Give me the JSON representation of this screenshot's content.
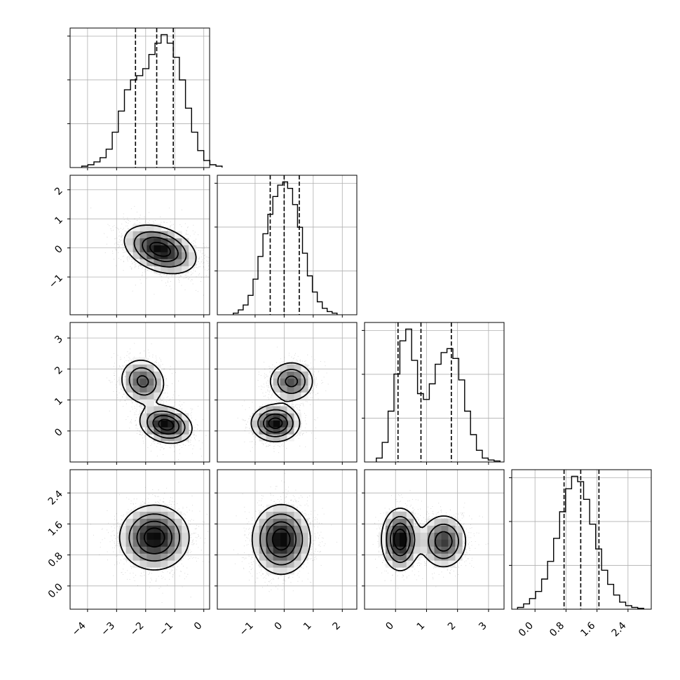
{
  "chart_data": {
    "type": "corner",
    "description_free": true,
    "grid": true,
    "parameters": [
      {
        "range": [
          -4.6,
          0.2
        ],
        "ticks": [
          -4,
          -3,
          -2,
          -1,
          0
        ],
        "tick_labels": [
          "−4",
          "−3",
          "−2",
          "−1",
          "0"
        ],
        "quantiles": [
          -2.35,
          -1.62,
          -1.05
        ],
        "hist": {
          "edges_start": -4.2,
          "bin_width": 0.21,
          "counts": [
            1,
            2,
            4,
            7,
            13,
            25,
            40,
            55,
            62,
            65,
            70,
            80,
            88,
            94,
            88,
            78,
            62,
            42,
            25,
            12,
            5,
            2,
            1
          ]
        }
      },
      {
        "range": [
          -2.3,
          2.5
        ],
        "ticks": [
          -1,
          0,
          1,
          2
        ],
        "tick_labels": [
          "−1",
          "0",
          "1",
          "2"
        ],
        "quantiles": [
          -0.48,
          0.0,
          0.52
        ],
        "hist": {
          "edges_start": -1.75,
          "bin_width": 0.17,
          "counts": [
            1,
            3,
            6,
            12,
            22,
            36,
            50,
            62,
            73,
            80,
            82,
            78,
            68,
            54,
            38,
            24,
            14,
            8,
            4,
            2,
            1
          ]
        }
      },
      {
        "range": [
          -1.0,
          3.5
        ],
        "ticks": [
          0,
          1,
          2,
          3
        ],
        "tick_labels": [
          "0",
          "1",
          "2",
          "3"
        ],
        "quantiles": [
          0.08,
          0.82,
          1.8
        ],
        "hist": {
          "edges_start": -0.62,
          "bin_width": 0.19,
          "counts": [
            2,
            10,
            26,
            45,
            62,
            68,
            52,
            35,
            32,
            40,
            50,
            56,
            58,
            53,
            42,
            26,
            14,
            6,
            2,
            1,
            0.5
          ]
        }
      },
      {
        "range": [
          -0.6,
          3.0
        ],
        "ticks": [
          0.0,
          0.8,
          1.6,
          2.4
        ],
        "tick_labels": [
          "0.0",
          "0.8",
          "1.6",
          "2.4"
        ],
        "quantiles": [
          0.75,
          1.18,
          1.65
        ],
        "hist": {
          "edges_start": -0.45,
          "bin_width": 0.155,
          "counts": [
            1,
            3,
            6,
            10,
            17,
            27,
            40,
            55,
            68,
            75,
            72,
            62,
            48,
            34,
            22,
            14,
            8,
            4,
            2,
            1,
            0.5
          ]
        }
      }
    ],
    "pairs": [
      {
        "row": 1,
        "col": 0,
        "modes": [
          {
            "mx": -1.5,
            "my": -0.05,
            "sx": 0.62,
            "sy": 0.42,
            "w": 1.0,
            "rho": -0.35
          }
        ]
      },
      {
        "row": 2,
        "col": 0,
        "modes": [
          {
            "mx": -2.1,
            "my": 1.6,
            "sx": 0.4,
            "sy": 0.38,
            "w": 0.55,
            "rho": -0.1
          },
          {
            "mx": -1.3,
            "my": 0.2,
            "sx": 0.45,
            "sy": 0.3,
            "w": 0.8,
            "rho": -0.2
          }
        ]
      },
      {
        "row": 2,
        "col": 1,
        "modes": [
          {
            "mx": 0.25,
            "my": 1.6,
            "sx": 0.4,
            "sy": 0.33,
            "w": 0.6,
            "rho": 0.0
          },
          {
            "mx": -0.3,
            "my": 0.25,
            "sx": 0.42,
            "sy": 0.3,
            "w": 0.85,
            "rho": 0.0
          }
        ]
      },
      {
        "row": 3,
        "col": 0,
        "modes": [
          {
            "mx": -1.7,
            "my": 1.25,
            "sx": 0.6,
            "sy": 0.42,
            "w": 1.0,
            "rho": 0.0
          }
        ]
      },
      {
        "row": 3,
        "col": 1,
        "modes": [
          {
            "mx": -0.1,
            "my": 1.2,
            "sx": 0.5,
            "sy": 0.45,
            "w": 1.0,
            "rho": 0.0
          }
        ]
      },
      {
        "row": 3,
        "col": 2,
        "modes": [
          {
            "mx": 0.15,
            "my": 1.2,
            "sx": 0.3,
            "sy": 0.4,
            "w": 0.8,
            "rho": 0.0
          },
          {
            "mx": 1.55,
            "my": 1.15,
            "sx": 0.38,
            "sy": 0.35,
            "w": 0.6,
            "rho": 0.0
          }
        ]
      }
    ],
    "colors": {
      "lines": "#000000",
      "grid": "#b0b0b0",
      "scatter": "#000000",
      "density_max": "#000000"
    }
  }
}
